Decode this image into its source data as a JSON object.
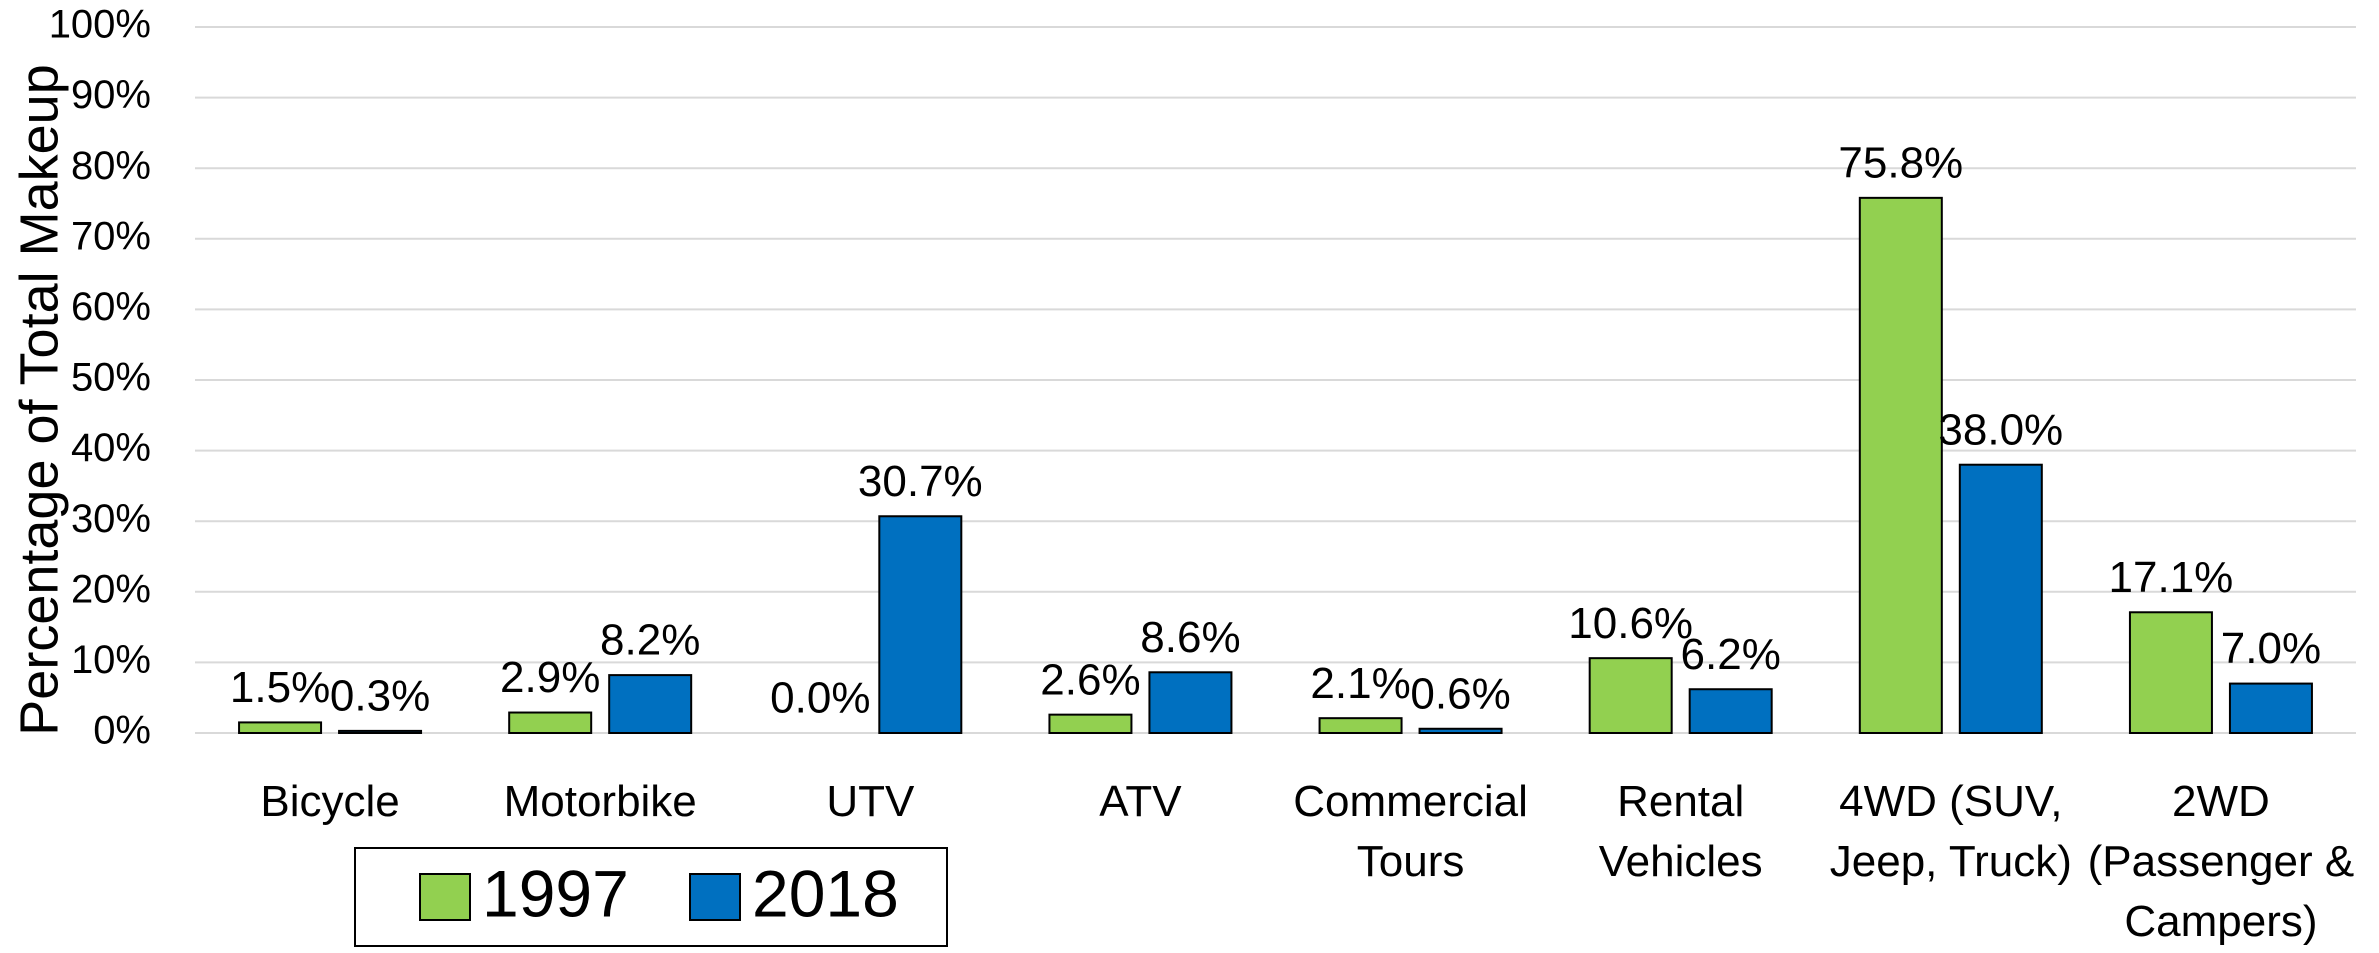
{
  "chart_data": {
    "type": "bar",
    "y_label": "Percentage of Total Makeup",
    "categories": [
      "Bicycle",
      "Motorbike",
      "UTV",
      "ATV",
      "Commercial Tours",
      "Rental Vehicles",
      "4WD (SUV, Jeep, Truck)",
      "2WD (Passenger & Campers)"
    ],
    "series": [
      {
        "name": "1997",
        "color": "#92d050",
        "values": [
          1.5,
          2.9,
          0.0,
          2.6,
          2.1,
          10.6,
          75.8,
          17.1
        ],
        "value_labels": [
          "1.5%",
          "2.9%",
          "0.0%",
          "2.6%",
          "2.1%",
          "10.6%",
          "75.8%",
          "17.1%"
        ]
      },
      {
        "name": "2018",
        "color": "#0070c0",
        "values": [
          0.3,
          8.2,
          30.7,
          8.6,
          0.6,
          6.2,
          38.0,
          7.0
        ],
        "value_labels": [
          "0.3%",
          "8.2%",
          "30.7%",
          "8.6%",
          "0.6%",
          "6.2%",
          "38.0%",
          "7.0%"
        ]
      }
    ],
    "ylim": [
      0,
      100
    ],
    "yticks": [
      {
        "value": 0,
        "label": "0%"
      },
      {
        "value": 10,
        "label": "10%"
      },
      {
        "value": 20,
        "label": "20%"
      },
      {
        "value": 30,
        "label": "30%"
      },
      {
        "value": 40,
        "label": "40%"
      },
      {
        "value": 50,
        "label": "50%"
      },
      {
        "value": 60,
        "label": "60%"
      },
      {
        "value": 70,
        "label": "70%"
      },
      {
        "value": 80,
        "label": "80%"
      },
      {
        "value": 90,
        "label": "90%"
      },
      {
        "value": 100,
        "label": "100%"
      }
    ],
    "grid": true,
    "legend": "bottom-left"
  }
}
